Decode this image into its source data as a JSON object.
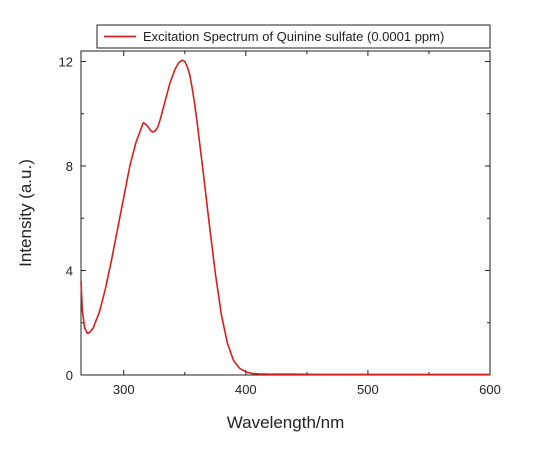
{
  "chart_data": {
    "type": "line",
    "xlabel": "Wavelength/nm",
    "ylabel": "Intensity (a.u.)",
    "xlim": [
      265,
      600
    ],
    "ylim": [
      0,
      12.4
    ],
    "xticks": [
      300,
      400,
      500,
      600
    ],
    "yticks": [
      0,
      4,
      8,
      12
    ],
    "xtick_labels": [
      "300",
      "400",
      "500",
      "600"
    ],
    "ytick_labels": [
      "0",
      "4",
      "8",
      "12"
    ],
    "legend_position": "top",
    "grid": false,
    "series": [
      {
        "name": "Excitation Spectrum of Quinine sulfate (0.0001 ppm)",
        "color": "#d41f1f",
        "x": [
          265,
          266,
          268,
          270,
          272,
          275,
          280,
          285,
          290,
          295,
          300,
          305,
          310,
          314,
          316,
          318,
          320,
          322,
          324,
          326,
          328,
          330,
          334,
          338,
          342,
          345,
          348,
          350,
          352,
          354,
          356,
          358,
          360,
          365,
          370,
          375,
          380,
          385,
          390,
          395,
          400,
          405,
          410,
          420,
          440,
          460,
          480,
          500,
          520,
          540,
          560,
          580,
          600
        ],
        "y": [
          3.6,
          2.5,
          1.8,
          1.6,
          1.62,
          1.8,
          2.4,
          3.3,
          4.4,
          5.6,
          6.8,
          8.0,
          8.9,
          9.4,
          9.65,
          9.6,
          9.5,
          9.35,
          9.3,
          9.35,
          9.5,
          9.8,
          10.5,
          11.2,
          11.7,
          11.95,
          12.05,
          12.0,
          11.8,
          11.5,
          11.0,
          10.4,
          9.7,
          7.8,
          5.8,
          3.9,
          2.3,
          1.2,
          0.55,
          0.25,
          0.12,
          0.06,
          0.04,
          0.03,
          0.03,
          0.02,
          0.02,
          0.02,
          0.02,
          0.02,
          0.02,
          0.02,
          0.02
        ]
      }
    ]
  }
}
